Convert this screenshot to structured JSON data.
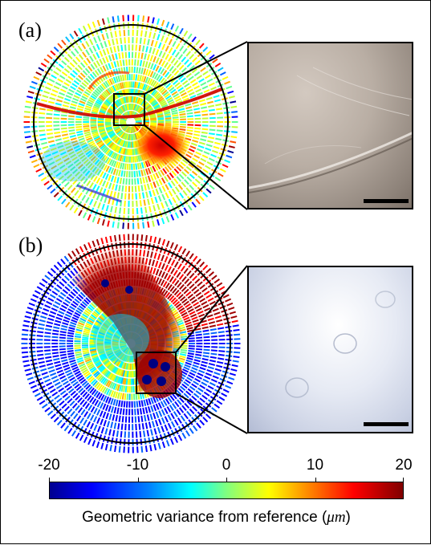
{
  "panels": {
    "a": {
      "label": "(a)"
    },
    "b": {
      "label": "(b)"
    }
  },
  "colorbar": {
    "ticks": [
      "-20",
      "-10",
      "0",
      "10",
      "20"
    ],
    "min": -20,
    "max": 20,
    "caption_prefix": "Geometric variance from reference (",
    "caption_unit": "μm",
    "caption_suffix": ")",
    "colors": [
      "#00008f",
      "#0000ff",
      "#00ffff",
      "#ffff00",
      "#ff0000",
      "#800000"
    ]
  }
}
